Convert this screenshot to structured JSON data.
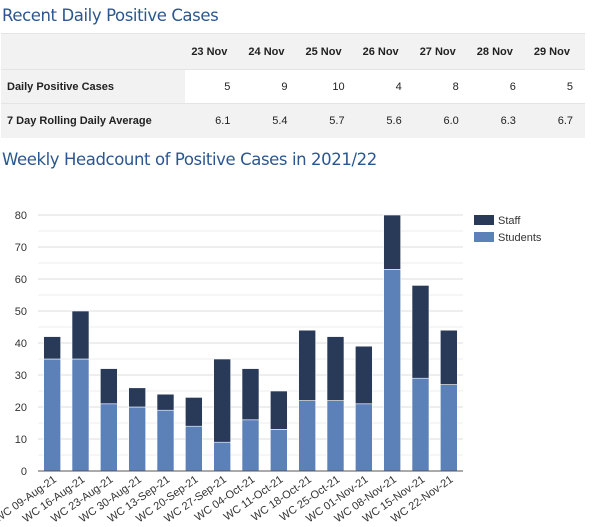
{
  "daily": {
    "title": "Recent Daily Positive Cases",
    "dates": [
      "23 Nov",
      "24 Nov",
      "25 Nov",
      "26 Nov",
      "27 Nov",
      "28 Nov",
      "29 Nov"
    ],
    "rows": [
      {
        "label": "Daily Positive Cases",
        "values": [
          "5",
          "9",
          "10",
          "4",
          "8",
          "6",
          "5"
        ]
      },
      {
        "label": "7 Day Rolling Daily Average",
        "values": [
          "6.1",
          "5.4",
          "5.7",
          "5.6",
          "6.0",
          "6.3",
          "6.7"
        ]
      }
    ]
  },
  "chart_title": "Weekly Headcount of Positive Cases in 2021/22",
  "chart_data": {
    "type": "bar",
    "stacked": true,
    "categories": [
      "WC 09-Aug-21",
      "WC 16-Aug-21",
      "WC 23-Aug-21",
      "WC 30-Aug-21",
      "WC 13-Sep-21",
      "WC 20-Sep-21",
      "WC 27-Sep-21",
      "WC 04-Oct-21",
      "WC 11-Oct-21",
      "WC 18-Oct-21",
      "WC 25-Oct-21",
      "WC 01-Nov-21",
      "WC 08-Nov-21",
      "WC 15-Nov-21",
      "WC 22-Nov-21"
    ],
    "series": [
      {
        "name": "Students",
        "color": "#5b81b8",
        "values": [
          35,
          35,
          21,
          20,
          19,
          14,
          9,
          16,
          13,
          22,
          22,
          21,
          63,
          29,
          27
        ]
      },
      {
        "name": "Staff",
        "color": "#293a59",
        "values": [
          7,
          15,
          11,
          6,
          5,
          9,
          26,
          16,
          12,
          22,
          20,
          18,
          17,
          29,
          17
        ]
      }
    ],
    "ylim": [
      0,
      80
    ],
    "yticks": [
      0,
      10,
      20,
      30,
      40,
      50,
      60,
      70,
      80
    ],
    "grid": true,
    "legend": "top-right"
  }
}
